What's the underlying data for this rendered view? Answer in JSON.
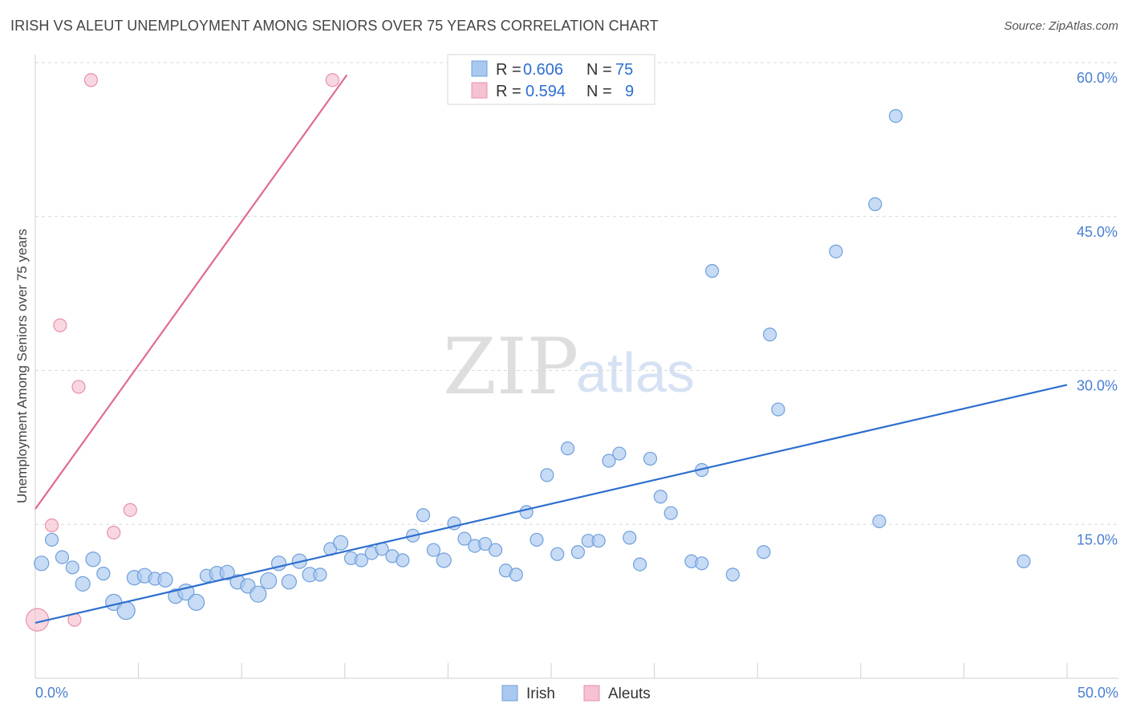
{
  "header": {
    "title": "IRISH VS ALEUT UNEMPLOYMENT AMONG SENIORS OVER 75 YEARS CORRELATION CHART",
    "source": "Source: ZipAtlas.com"
  },
  "watermark": {
    "zip": "ZIP",
    "atlas": "atlas"
  },
  "colors": {
    "irish_fill": "#a9c8f0",
    "irish_stroke": "#6f9fdc",
    "irish_line": "#2f6fce",
    "aleut_fill": "#f6c1d0",
    "aleut_stroke": "#e890ab",
    "aleut_line": "#e06b92",
    "tick_text": "#4a7fd0",
    "grid": "#d9d9d9"
  },
  "legend": {
    "rows": [
      {
        "r_label": "R =",
        "r_value": "0.606",
        "n_label": "N =",
        "n_value": "75"
      },
      {
        "r_label": "R =",
        "r_value": "0.594",
        "n_label": "N =",
        "n_value": "9"
      }
    ]
  },
  "bottom_legend": {
    "irish": "Irish",
    "aleuts": "Aleuts"
  },
  "chart_data": {
    "type": "scatter",
    "title": "IRISH VS ALEUT UNEMPLOYMENT AMONG SENIORS OVER 75 YEARS CORRELATION CHART",
    "xlabel": "",
    "ylabel": "Unemployment Among Seniors over 75 years",
    "xlim": [
      0,
      50
    ],
    "ylim": [
      0,
      60
    ],
    "x_tick_labels": [
      "0.0%",
      "50.0%"
    ],
    "y_ticks": [
      15,
      30,
      45,
      60
    ],
    "y_tick_labels": [
      "15.0%",
      "30.0%",
      "45.0%",
      "60.0%"
    ],
    "grid": true,
    "legend_position": "top-center",
    "series": [
      {
        "name": "Irish",
        "r": 0.606,
        "n": 75,
        "trend": {
          "x": [
            0,
            50
          ],
          "y": [
            5.4,
            28.6
          ]
        },
        "points": [
          {
            "x": 0.3,
            "y": 11.2,
            "s": 9
          },
          {
            "x": 0.8,
            "y": 13.5,
            "s": 8
          },
          {
            "x": 1.3,
            "y": 11.8,
            "s": 8
          },
          {
            "x": 1.8,
            "y": 10.8,
            "s": 8
          },
          {
            "x": 2.3,
            "y": 9.2,
            "s": 9
          },
          {
            "x": 2.8,
            "y": 11.6,
            "s": 9
          },
          {
            "x": 3.3,
            "y": 10.2,
            "s": 8
          },
          {
            "x": 3.8,
            "y": 7.4,
            "s": 10
          },
          {
            "x": 4.4,
            "y": 6.6,
            "s": 11
          },
          {
            "x": 4.8,
            "y": 9.8,
            "s": 9
          },
          {
            "x": 5.3,
            "y": 10,
            "s": 9
          },
          {
            "x": 5.8,
            "y": 9.7,
            "s": 8
          },
          {
            "x": 6.3,
            "y": 9.6,
            "s": 9
          },
          {
            "x": 6.8,
            "y": 8,
            "s": 9
          },
          {
            "x": 7.3,
            "y": 8.4,
            "s": 10
          },
          {
            "x": 7.8,
            "y": 7.4,
            "s": 10
          },
          {
            "x": 8.3,
            "y": 10,
            "s": 8
          },
          {
            "x": 8.8,
            "y": 10.2,
            "s": 9
          },
          {
            "x": 9.3,
            "y": 10.3,
            "s": 9
          },
          {
            "x": 9.8,
            "y": 9.4,
            "s": 9
          },
          {
            "x": 10.3,
            "y": 9,
            "s": 9
          },
          {
            "x": 10.8,
            "y": 8.2,
            "s": 10
          },
          {
            "x": 11.3,
            "y": 9.5,
            "s": 10
          },
          {
            "x": 11.8,
            "y": 11.2,
            "s": 9
          },
          {
            "x": 12.3,
            "y": 9.4,
            "s": 9
          },
          {
            "x": 12.8,
            "y": 11.4,
            "s": 9
          },
          {
            "x": 13.3,
            "y": 10.1,
            "s": 9
          },
          {
            "x": 13.8,
            "y": 10.1,
            "s": 8
          },
          {
            "x": 14.3,
            "y": 12.6,
            "s": 8
          },
          {
            "x": 14.8,
            "y": 13.2,
            "s": 9
          },
          {
            "x": 15.3,
            "y": 11.7,
            "s": 8
          },
          {
            "x": 15.8,
            "y": 11.5,
            "s": 8
          },
          {
            "x": 16.3,
            "y": 12.2,
            "s": 8
          },
          {
            "x": 16.8,
            "y": 12.6,
            "s": 8
          },
          {
            "x": 17.3,
            "y": 11.9,
            "s": 8
          },
          {
            "x": 17.8,
            "y": 11.5,
            "s": 8
          },
          {
            "x": 18.3,
            "y": 13.9,
            "s": 8
          },
          {
            "x": 18.8,
            "y": 15.9,
            "s": 8
          },
          {
            "x": 19.3,
            "y": 12.5,
            "s": 8
          },
          {
            "x": 19.8,
            "y": 11.5,
            "s": 9
          },
          {
            "x": 20.3,
            "y": 15.1,
            "s": 8
          },
          {
            "x": 20.8,
            "y": 13.6,
            "s": 8
          },
          {
            "x": 21.3,
            "y": 12.9,
            "s": 8
          },
          {
            "x": 21.8,
            "y": 13.1,
            "s": 8
          },
          {
            "x": 22.3,
            "y": 12.5,
            "s": 8
          },
          {
            "x": 22.8,
            "y": 10.5,
            "s": 8
          },
          {
            "x": 23.3,
            "y": 10.1,
            "s": 8
          },
          {
            "x": 23.8,
            "y": 16.2,
            "s": 8
          },
          {
            "x": 24.3,
            "y": 13.5,
            "s": 8
          },
          {
            "x": 24.8,
            "y": 19.8,
            "s": 8
          },
          {
            "x": 25.3,
            "y": 12.1,
            "s": 8
          },
          {
            "x": 25.8,
            "y": 22.4,
            "s": 8
          },
          {
            "x": 26.3,
            "y": 12.3,
            "s": 8
          },
          {
            "x": 26.8,
            "y": 13.4,
            "s": 8
          },
          {
            "x": 27.3,
            "y": 13.4,
            "s": 8
          },
          {
            "x": 27.8,
            "y": 21.2,
            "s": 8
          },
          {
            "x": 28.3,
            "y": 21.9,
            "s": 8
          },
          {
            "x": 28.8,
            "y": 13.7,
            "s": 8
          },
          {
            "x": 29.3,
            "y": 11.1,
            "s": 8
          },
          {
            "x": 29.8,
            "y": 21.4,
            "s": 8
          },
          {
            "x": 30.3,
            "y": 17.7,
            "s": 8
          },
          {
            "x": 30.8,
            "y": 16.1,
            "s": 8
          },
          {
            "x": 31.8,
            "y": 11.4,
            "s": 8
          },
          {
            "x": 32.3,
            "y": 11.2,
            "s": 8
          },
          {
            "x": 32.3,
            "y": 20.3,
            "s": 8
          },
          {
            "x": 32.8,
            "y": 39.7,
            "s": 8
          },
          {
            "x": 33.8,
            "y": 10.1,
            "s": 8
          },
          {
            "x": 35.3,
            "y": 12.3,
            "s": 8
          },
          {
            "x": 35.6,
            "y": 33.5,
            "s": 8
          },
          {
            "x": 36.0,
            "y": 26.2,
            "s": 8
          },
          {
            "x": 38.8,
            "y": 41.6,
            "s": 8
          },
          {
            "x": 40.7,
            "y": 46.2,
            "s": 8
          },
          {
            "x": 40.9,
            "y": 15.3,
            "s": 8
          },
          {
            "x": 41.7,
            "y": 54.8,
            "s": 8
          },
          {
            "x": 47.9,
            "y": 11.4,
            "s": 8
          }
        ]
      },
      {
        "name": "Aleuts",
        "r": 0.594,
        "n": 9,
        "trend": {
          "x": [
            0,
            15.1
          ],
          "y": [
            16.5,
            58.8
          ]
        },
        "points": [
          {
            "x": 0.1,
            "y": 5.7,
            "s": 14
          },
          {
            "x": 0.8,
            "y": 14.9,
            "s": 8
          },
          {
            "x": 1.2,
            "y": 34.4,
            "s": 8
          },
          {
            "x": 1.9,
            "y": 5.7,
            "s": 8
          },
          {
            "x": 2.1,
            "y": 28.4,
            "s": 8
          },
          {
            "x": 2.7,
            "y": 58.3,
            "s": 8
          },
          {
            "x": 3.8,
            "y": 14.2,
            "s": 8
          },
          {
            "x": 4.6,
            "y": 16.4,
            "s": 8
          },
          {
            "x": 14.4,
            "y": 58.3,
            "s": 8
          }
        ]
      }
    ]
  }
}
